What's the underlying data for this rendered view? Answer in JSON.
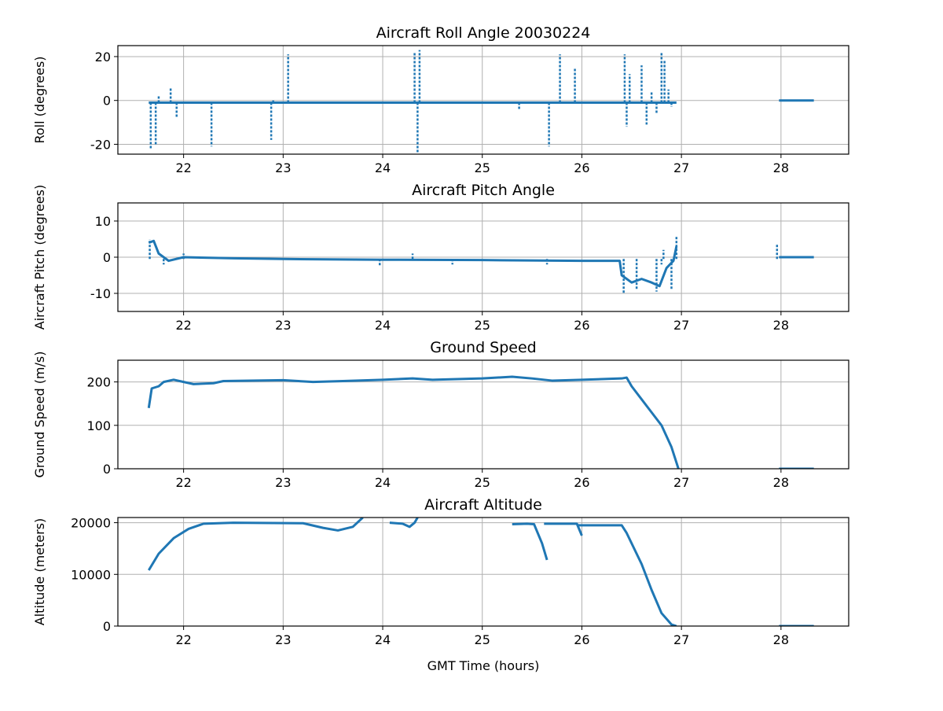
{
  "chart_data": [
    {
      "type": "scatter",
      "title": "Aircraft Roll Angle 20030224",
      "ylabel": "Roll (degrees)",
      "xlabel": "",
      "xlim": [
        21.34,
        28.68
      ],
      "ylim": [
        -24.5,
        25
      ],
      "xticks": [
        22,
        23,
        24,
        25,
        26,
        27,
        28
      ],
      "yticks": [
        20,
        0,
        -20
      ],
      "grid": true,
      "color": "#1f77b4",
      "segments": [
        [
          [
            21.65,
            -1
          ],
          [
            26.95,
            -1
          ]
        ],
        [
          [
            27.98,
            0
          ],
          [
            28.33,
            0
          ]
        ]
      ],
      "spikes": [
        [
          21.67,
          -22
        ],
        [
          21.72,
          -20
        ],
        [
          21.75,
          2
        ],
        [
          21.87,
          6
        ],
        [
          21.93,
          -8
        ],
        [
          22.28,
          -21
        ],
        [
          22.88,
          -18
        ],
        [
          22.9,
          0
        ],
        [
          23.05,
          21
        ],
        [
          24.32,
          22
        ],
        [
          24.35,
          -24
        ],
        [
          24.37,
          23
        ],
        [
          25.37,
          -4
        ],
        [
          25.67,
          -21
        ],
        [
          25.78,
          21
        ],
        [
          25.93,
          15
        ],
        [
          26.43,
          21
        ],
        [
          26.45,
          -12
        ],
        [
          26.48,
          12
        ],
        [
          26.6,
          16
        ],
        [
          26.65,
          -11
        ],
        [
          26.7,
          4
        ],
        [
          26.75,
          -6
        ],
        [
          26.8,
          22
        ],
        [
          26.83,
          18
        ],
        [
          26.87,
          5
        ],
        [
          26.9,
          -3
        ]
      ]
    },
    {
      "type": "scatter",
      "title": "Aircraft Pitch Angle",
      "ylabel": "Aircraft Pitch (degrees)",
      "xlabel": "",
      "xlim": [
        21.34,
        28.68
      ],
      "ylim": [
        -15,
        15
      ],
      "xticks": [
        22,
        23,
        24,
        25,
        26,
        27,
        28
      ],
      "yticks": [
        10,
        0,
        -10
      ],
      "grid": true,
      "color": "#1f77b4",
      "segments": [
        [
          [
            21.65,
            4
          ],
          [
            21.7,
            4.5
          ],
          [
            21.75,
            1
          ],
          [
            21.85,
            -1
          ],
          [
            22,
            0
          ],
          [
            22.5,
            -0.3
          ],
          [
            23,
            -0.5
          ],
          [
            24,
            -0.7
          ],
          [
            25,
            -0.8
          ],
          [
            26,
            -1
          ],
          [
            26.38,
            -1
          ],
          [
            26.4,
            -5
          ],
          [
            26.5,
            -7
          ],
          [
            26.6,
            -6
          ],
          [
            26.7,
            -7
          ],
          [
            26.78,
            -8
          ],
          [
            26.85,
            -3
          ],
          [
            26.92,
            -1
          ],
          [
            26.95,
            3
          ]
        ],
        [
          [
            27.98,
            0
          ],
          [
            28.33,
            0
          ]
        ]
      ],
      "spikes": [
        [
          21.66,
          5
        ],
        [
          21.8,
          -2
        ],
        [
          22,
          1
        ],
        [
          23.97,
          -2.5
        ],
        [
          24.3,
          1
        ],
        [
          24.7,
          -2
        ],
        [
          25.65,
          -2
        ],
        [
          26.42,
          -10
        ],
        [
          26.55,
          -9
        ],
        [
          26.75,
          -9.5
        ],
        [
          26.8,
          -2
        ],
        [
          26.82,
          2
        ],
        [
          26.9,
          -9
        ],
        [
          26.95,
          6
        ],
        [
          27.96,
          3.5
        ]
      ]
    },
    {
      "type": "scatter",
      "title": "Ground Speed",
      "ylabel": "Ground Speed (m/s)",
      "xlabel": "",
      "xlim": [
        21.34,
        28.68
      ],
      "ylim": [
        0,
        250
      ],
      "xticks": [
        22,
        23,
        24,
        25,
        26,
        27,
        28
      ],
      "yticks": [
        200,
        100,
        0
      ],
      "grid": true,
      "color": "#1f77b4",
      "segments": [
        [
          [
            21.65,
            140
          ],
          [
            21.68,
            185
          ],
          [
            21.75,
            190
          ],
          [
            21.8,
            200
          ],
          [
            21.9,
            205
          ],
          [
            22,
            200
          ],
          [
            22.1,
            195
          ],
          [
            22.3,
            197
          ],
          [
            22.4,
            202
          ],
          [
            23,
            204
          ],
          [
            23.3,
            200
          ],
          [
            23.6,
            202
          ],
          [
            24,
            205
          ],
          [
            24.3,
            208
          ],
          [
            24.5,
            205
          ],
          [
            25,
            208
          ],
          [
            25.3,
            212
          ],
          [
            25.5,
            208
          ],
          [
            25.7,
            203
          ],
          [
            26,
            205
          ],
          [
            26.4,
            208
          ],
          [
            26.45,
            210
          ],
          [
            26.5,
            190
          ],
          [
            26.6,
            160
          ],
          [
            26.7,
            130
          ],
          [
            26.8,
            100
          ],
          [
            26.9,
            50
          ],
          [
            26.97,
            0
          ]
        ],
        [
          [
            27.98,
            0
          ],
          [
            28.33,
            0
          ]
        ]
      ],
      "spikes": []
    },
    {
      "type": "scatter",
      "title": "Aircraft Altitude",
      "ylabel": "Altitude (meters)",
      "xlabel": "GMT Time (hours)",
      "xlim": [
        21.34,
        28.68
      ],
      "ylim": [
        0,
        21000
      ],
      "xticks": [
        22,
        23,
        24,
        25,
        26,
        27,
        28
      ],
      "yticks": [
        20000,
        10000,
        0
      ],
      "grid": true,
      "color": "#1f77b4",
      "segments": [
        [
          [
            21.65,
            10800
          ],
          [
            21.75,
            14000
          ],
          [
            21.9,
            17000
          ],
          [
            22.05,
            18800
          ],
          [
            22.2,
            19800
          ],
          [
            22.5,
            20000
          ],
          [
            23.2,
            19900
          ],
          [
            23.4,
            19000
          ],
          [
            23.55,
            18500
          ],
          [
            23.7,
            19200
          ],
          [
            23.8,
            21000
          ]
        ],
        [
          [
            24.07,
            20000
          ],
          [
            24.2,
            19800
          ],
          [
            24.27,
            19200
          ],
          [
            24.32,
            20000
          ],
          [
            24.35,
            21000
          ]
        ],
        [
          [
            25.3,
            19700
          ],
          [
            25.45,
            19800
          ],
          [
            25.52,
            19700
          ],
          [
            25.6,
            16000
          ],
          [
            25.65,
            12800
          ]
        ],
        [
          [
            25.62,
            19800
          ],
          [
            25.95,
            19800
          ],
          [
            26.0,
            17500
          ]
        ],
        [
          [
            25.95,
            19500
          ],
          [
            26.4,
            19500
          ],
          [
            26.45,
            18000
          ],
          [
            26.6,
            12000
          ],
          [
            26.7,
            7000
          ],
          [
            26.8,
            2500
          ],
          [
            26.9,
            300
          ],
          [
            26.95,
            0
          ]
        ],
        [
          [
            27.98,
            0
          ],
          [
            28.33,
            0
          ]
        ]
      ],
      "spikes": []
    }
  ]
}
